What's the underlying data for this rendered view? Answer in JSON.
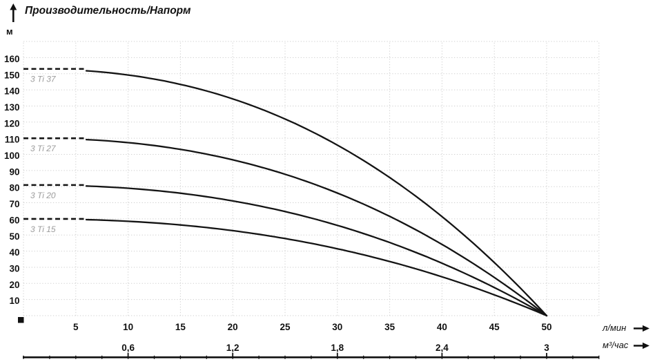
{
  "chart_data": {
    "type": "line",
    "title": "Производительность/Напорм",
    "y_axis": {
      "unit": "м",
      "min": 0,
      "max": 170,
      "tick_min": 10,
      "tick_max": 160,
      "tick_step": 10
    },
    "x_axis_lmin": {
      "unit": "л/мин",
      "min": 0,
      "max": 55,
      "tick_min": 5,
      "tick_max": 50,
      "tick_step": 5
    },
    "x_axis_m3h": {
      "unit": "м³/час",
      "tick_labels": [
        "0,6",
        "1,2",
        "1,8",
        "2,4",
        "3"
      ],
      "tick_values": [
        0.6,
        1.2,
        1.8,
        2.4,
        3
      ],
      "minor_tick_step": 0.15,
      "max": 3.3,
      "lmin_per_unit": 16.667
    },
    "x": [
      0,
      5,
      10,
      15,
      20,
      25,
      30,
      35,
      40,
      45,
      50
    ],
    "series": [
      {
        "name": "3 Ti 37",
        "h0": 153,
        "points": [
          153,
          152,
          149,
          143,
          134,
          122,
          106,
          86,
          61,
          33,
          0
        ]
      },
      {
        "name": "3 Ti 27",
        "h0": 110,
        "points": [
          110,
          109,
          107,
          103,
          97,
          88,
          76,
          62,
          44,
          24,
          0
        ]
      },
      {
        "name": "3 Ti 20",
        "h0": 81,
        "points": [
          81,
          81,
          79,
          76,
          71,
          65,
          56,
          45,
          33,
          17,
          0
        ]
      },
      {
        "name": "3 Ti 15",
        "h0": 60,
        "points": [
          60,
          60,
          59,
          56,
          53,
          48,
          41,
          34,
          24,
          13,
          0
        ]
      }
    ],
    "curve_model": {
      "formula": "H = H0 * (1 - (Q/Qmax)^2.3)",
      "exponent": 2.3,
      "q_max": 50,
      "dashed_segment_q": [
        0,
        6
      ]
    },
    "grid": true,
    "legend_position": "inline-left",
    "colors": {
      "curve": "#141414",
      "grid": "#cfcfcf",
      "series_label": "#9c9c9c",
      "text": "#111111"
    }
  }
}
